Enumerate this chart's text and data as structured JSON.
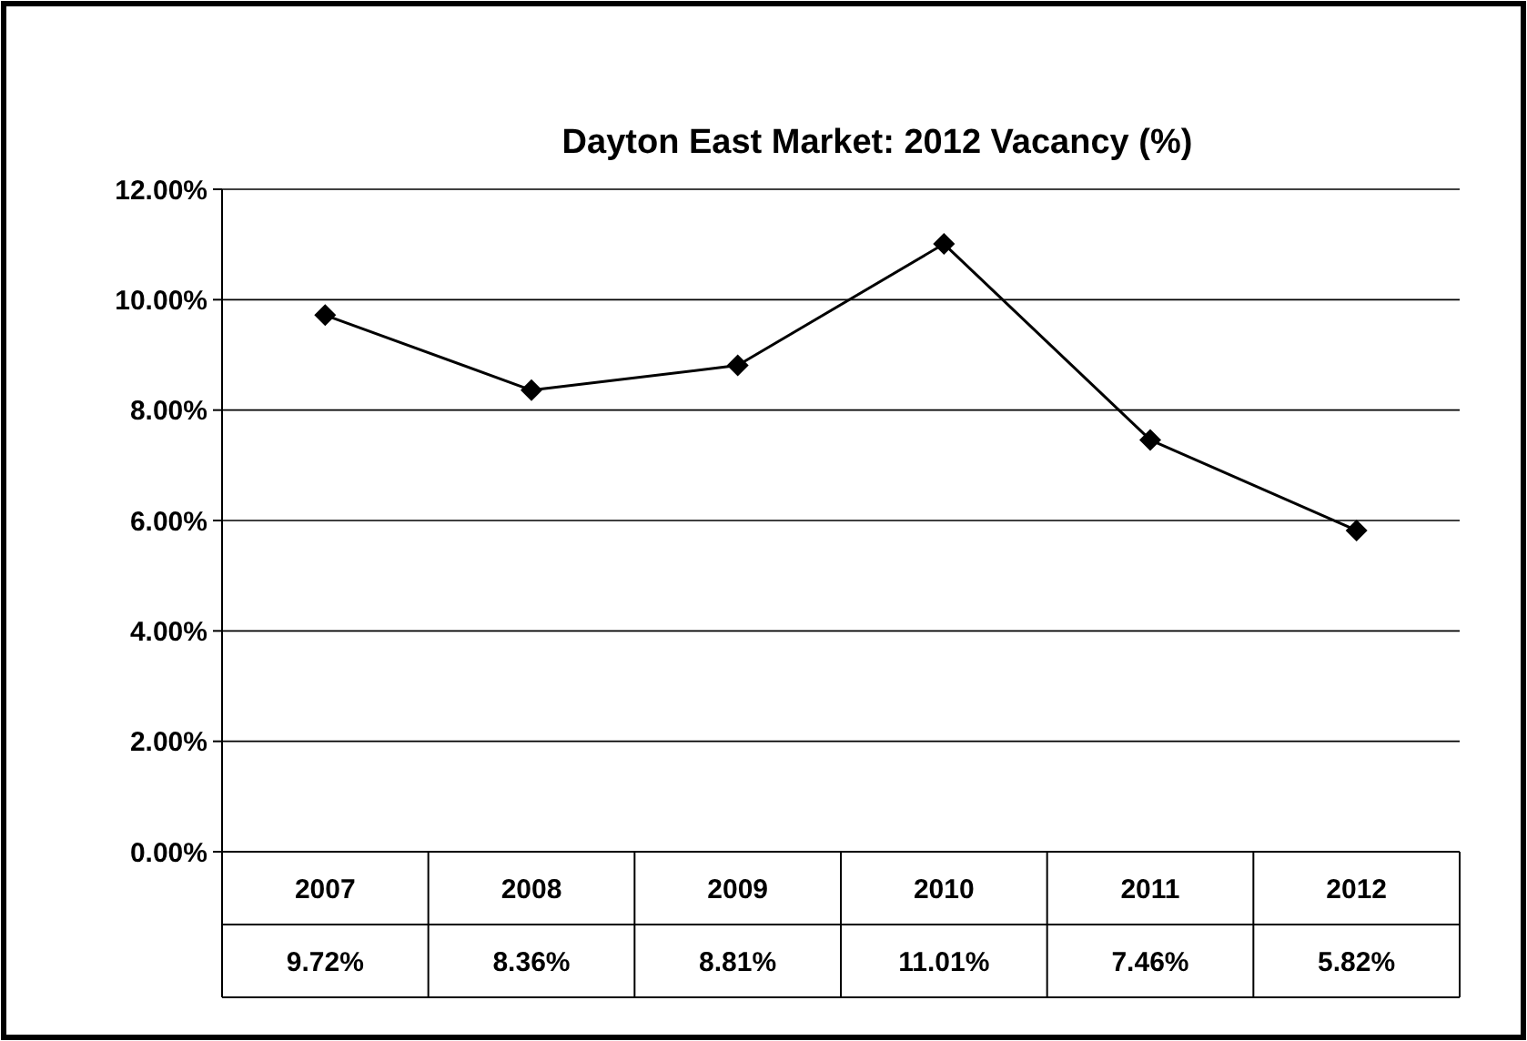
{
  "chart_data": {
    "type": "line",
    "title": "Dayton East Market: 2012 Vacancy (%)",
    "categories": [
      "2007",
      "2008",
      "2009",
      "2010",
      "2011",
      "2012"
    ],
    "series": [
      {
        "color": "#000000",
        "values": [
          9.72,
          8.36,
          8.81,
          11.01,
          7.46,
          5.82
        ]
      }
    ],
    "value_labels": [
      "9.72%",
      "8.36%",
      "8.81%",
      "11.01%",
      "7.46%",
      "5.82%"
    ],
    "ylim": [
      0,
      12
    ],
    "yticks": [
      {
        "value": 0,
        "label": "0.00%"
      },
      {
        "value": 2,
        "label": "2.00%"
      },
      {
        "value": 4,
        "label": "4.00%"
      },
      {
        "value": 6,
        "label": "6.00%"
      },
      {
        "value": 8,
        "label": "8.00%"
      },
      {
        "value": 10,
        "label": "10.00%"
      },
      {
        "value": 12,
        "label": "12.00%"
      }
    ],
    "grid": "y",
    "marker": "diamond",
    "line_style": "solid"
  }
}
